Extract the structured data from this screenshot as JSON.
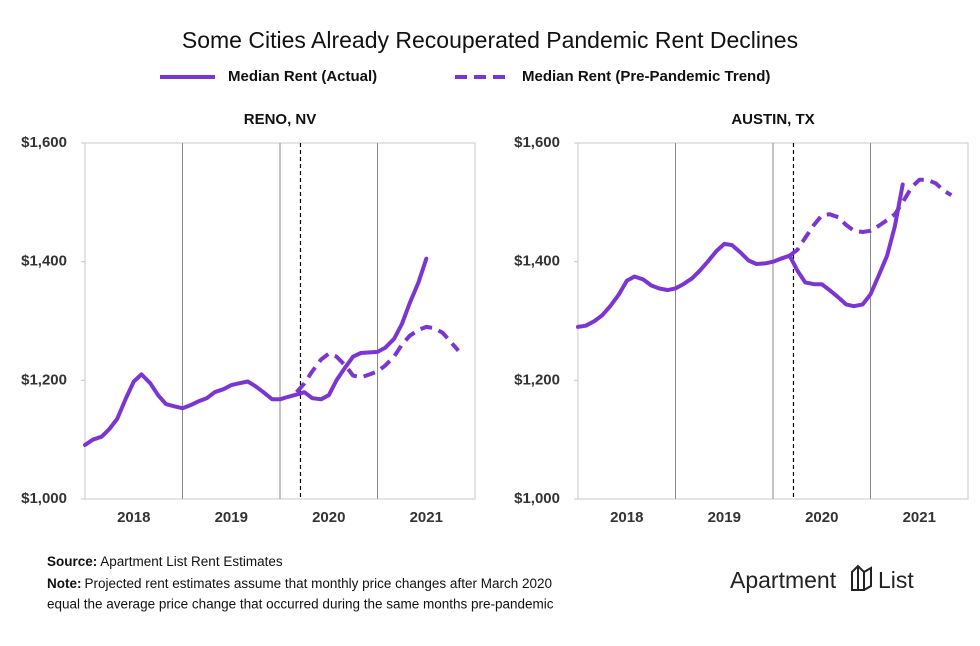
{
  "title": "Some Cities Already Recouperated Pandemic Rent Declines",
  "chart_data": [
    {
      "type": "line",
      "title": "RENO, NV",
      "x": [
        2018.0,
        2018.08,
        2018.17,
        2018.25,
        2018.33,
        2018.42,
        2018.5,
        2018.58,
        2018.67,
        2018.75,
        2018.83,
        2018.92,
        2019.0,
        2019.08,
        2019.17,
        2019.25,
        2019.33,
        2019.42,
        2019.5,
        2019.58,
        2019.67,
        2019.75,
        2019.83,
        2019.92,
        2020.0,
        2020.08,
        2020.17,
        2020.25,
        2020.33,
        2020.42,
        2020.5,
        2020.58,
        2020.67,
        2020.75,
        2020.83,
        2020.92,
        2021.0,
        2021.08,
        2021.17,
        2021.25,
        2021.33,
        2021.42,
        2021.5,
        2021.58,
        2021.67,
        2021.75,
        2021.83
      ],
      "series": [
        {
          "name": "Median Rent (Actual)",
          "color": "#7b35d2",
          "style": "solid",
          "values": [
            1091,
            1100,
            1105,
            1118,
            1135,
            1170,
            1198,
            1210,
            1195,
            1175,
            1160,
            1156,
            1153,
            1158,
            1165,
            1170,
            1180,
            1185,
            1192,
            1195,
            1198,
            1190,
            1180,
            1168,
            1168,
            1172,
            1176,
            1180,
            1170,
            1168,
            1175,
            1200,
            1222,
            1240,
            1246,
            1247,
            1248,
            1255,
            1270,
            1295,
            1330,
            1365,
            1405,
            null,
            null,
            null,
            null
          ]
        },
        {
          "name": "Median Rent (Pre-Pandemic Trend)",
          "color": "#7b35d2",
          "style": "dashed",
          "values": [
            null,
            null,
            null,
            null,
            null,
            null,
            null,
            null,
            null,
            null,
            null,
            null,
            null,
            null,
            null,
            null,
            null,
            null,
            null,
            null,
            null,
            null,
            null,
            null,
            null,
            null,
            1180,
            1195,
            1215,
            1235,
            1245,
            1240,
            1225,
            1208,
            1205,
            1210,
            1215,
            1225,
            1240,
            1260,
            1275,
            1285,
            1290,
            1288,
            1280,
            1265,
            1250
          ]
        }
      ],
      "xlim": [
        2018,
        2022
      ],
      "xgrid": [
        2019,
        2020,
        2021
      ],
      "event_x": 2020.21,
      "x_labels": [
        {
          "value": 2018.5,
          "label": "2018"
        },
        {
          "value": 2019.5,
          "label": "2019"
        },
        {
          "value": 2020.5,
          "label": "2020"
        },
        {
          "value": 2021.5,
          "label": "2021"
        }
      ],
      "ylim": [
        1000,
        1600
      ],
      "yticks": [
        {
          "value": 1000,
          "label": "$1,000"
        },
        {
          "value": 1200,
          "label": "$1,200"
        },
        {
          "value": 1400,
          "label": "$1,400"
        },
        {
          "value": 1600,
          "label": "$1,600"
        }
      ]
    },
    {
      "type": "line",
      "title": "AUSTIN, TX",
      "x": [
        2018.0,
        2018.08,
        2018.17,
        2018.25,
        2018.33,
        2018.42,
        2018.5,
        2018.58,
        2018.67,
        2018.75,
        2018.83,
        2018.92,
        2019.0,
        2019.08,
        2019.17,
        2019.25,
        2019.33,
        2019.42,
        2019.5,
        2019.58,
        2019.67,
        2019.75,
        2019.83,
        2019.92,
        2020.0,
        2020.08,
        2020.17,
        2020.25,
        2020.33,
        2020.42,
        2020.5,
        2020.58,
        2020.67,
        2020.75,
        2020.83,
        2020.92,
        2021.0,
        2021.08,
        2021.17,
        2021.25,
        2021.33,
        2021.42,
        2021.5,
        2021.58,
        2021.67,
        2021.75,
        2021.83
      ],
      "series": [
        {
          "name": "Median Rent (Actual)",
          "color": "#7b35d2",
          "style": "solid",
          "values": [
            1290,
            1292,
            1300,
            1310,
            1325,
            1345,
            1368,
            1375,
            1370,
            1360,
            1355,
            1352,
            1355,
            1362,
            1372,
            1385,
            1400,
            1418,
            1430,
            1428,
            1415,
            1402,
            1396,
            1397,
            1400,
            1405,
            1410,
            1385,
            1365,
            1362,
            1362,
            1352,
            1340,
            1328,
            1325,
            1328,
            1345,
            1375,
            1410,
            1460,
            1530,
            null,
            null,
            null,
            null,
            null,
            null
          ]
        },
        {
          "name": "Median Rent (Pre-Pandemic Trend)",
          "color": "#7b35d2",
          "style": "dashed",
          "values": [
            null,
            null,
            null,
            null,
            null,
            null,
            null,
            null,
            null,
            null,
            null,
            null,
            null,
            null,
            null,
            null,
            null,
            null,
            null,
            null,
            null,
            null,
            null,
            null,
            null,
            null,
            1410,
            1420,
            1440,
            1462,
            1478,
            1480,
            1475,
            1462,
            1452,
            1450,
            1452,
            1460,
            1470,
            1480,
            1500,
            1525,
            1538,
            1538,
            1532,
            1520,
            1512
          ]
        }
      ],
      "xlim": [
        2018,
        2022
      ],
      "xgrid": [
        2019,
        2020,
        2021
      ],
      "event_x": 2020.21,
      "x_labels": [
        {
          "value": 2018.5,
          "label": "2018"
        },
        {
          "value": 2019.5,
          "label": "2019"
        },
        {
          "value": 2020.5,
          "label": "2020"
        },
        {
          "value": 2021.5,
          "label": "2021"
        }
      ],
      "ylim": [
        1000,
        1600
      ],
      "yticks": [
        {
          "value": 1000,
          "label": "$1,000"
        },
        {
          "value": 1200,
          "label": "$1,200"
        },
        {
          "value": 1400,
          "label": "$1,400"
        },
        {
          "value": 1600,
          "label": "$1,600"
        }
      ]
    }
  ],
  "source": {
    "label": "Source:",
    "text": "Apartment List Rent Estimates"
  },
  "note": {
    "label": "Note:",
    "lines": [
      "Projected rent estimates assume that monthly price changes after March 2020",
      "equal the average price change that occurred during the same months pre-pandemic"
    ]
  },
  "logo": [
    "Apartment",
    "List"
  ]
}
